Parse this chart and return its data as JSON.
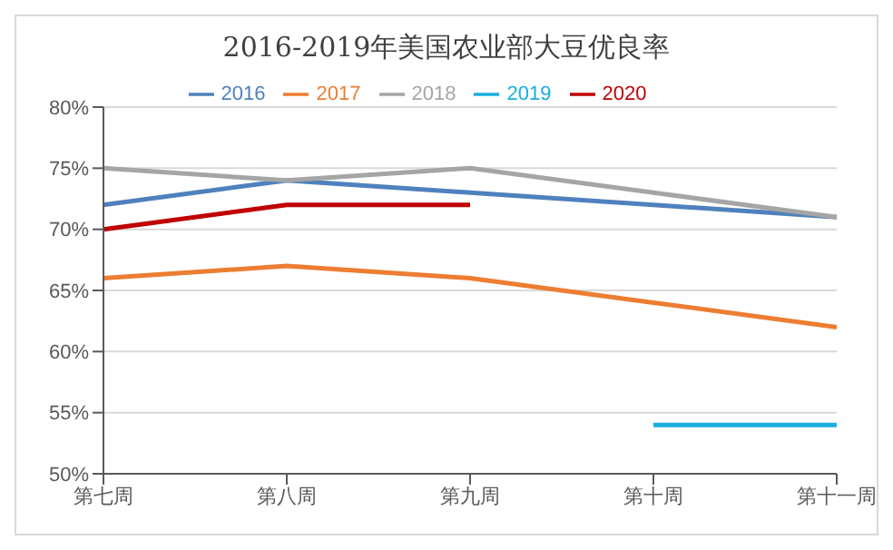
{
  "chart_data": {
    "type": "line",
    "title": "2016-2019年美国农业部大豆优良率",
    "categories": [
      "第七周",
      "第八周",
      "第九周",
      "第十周",
      "第十一周"
    ],
    "series": [
      {
        "name": "2016",
        "color": "#4f81bd",
        "values": [
          72,
          74,
          73,
          72,
          71
        ]
      },
      {
        "name": "2017",
        "color": "#ed7d31",
        "values": [
          66,
          67,
          66,
          64,
          62
        ]
      },
      {
        "name": "2018",
        "color": "#a5a5a5",
        "values": [
          75,
          74,
          75,
          73,
          71
        ]
      },
      {
        "name": "2019",
        "color": "#1aaee0",
        "values": [
          null,
          null,
          null,
          54,
          54
        ]
      },
      {
        "name": "2020",
        "color": "#c00000",
        "values": [
          70,
          72,
          72,
          null,
          null
        ]
      }
    ],
    "ylim": [
      50,
      80
    ],
    "yticks": [
      {
        "value": 50,
        "label": "50%"
      },
      {
        "value": 55,
        "label": "55%"
      },
      {
        "value": 60,
        "label": "60%"
      },
      {
        "value": 65,
        "label": "65%"
      },
      {
        "value": 70,
        "label": "70%"
      },
      {
        "value": 75,
        "label": "75%"
      },
      {
        "value": 80,
        "label": "80%"
      }
    ],
    "grid": "y",
    "legend": "top",
    "marker": "none",
    "line_style": "solid"
  }
}
